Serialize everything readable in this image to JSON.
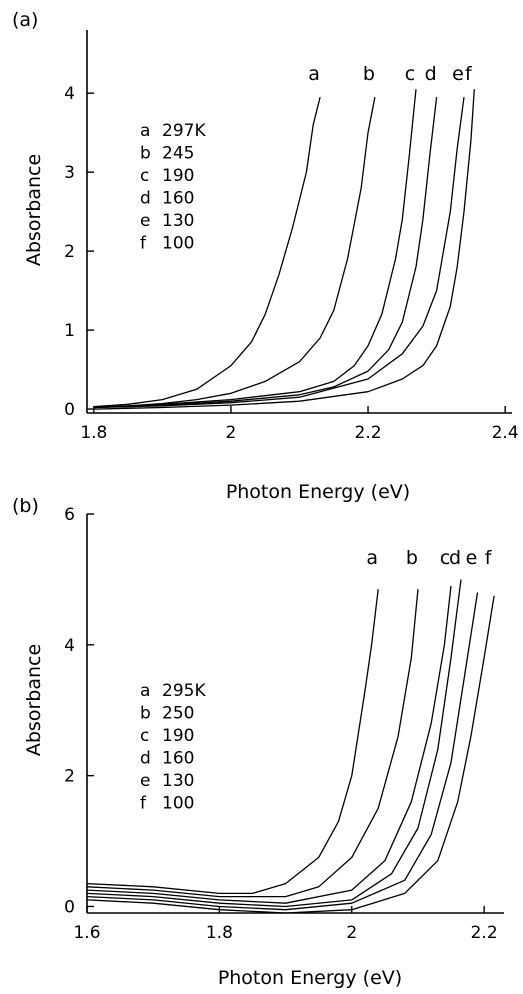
{
  "chart_data": [
    {
      "type": "line",
      "panel_label": "(a)",
      "xlabel": "Photon Energy (eV)",
      "ylabel": "Absorbance",
      "xlim": [
        1.79,
        2.41
      ],
      "ylim": [
        -0.05,
        4.8
      ],
      "xticks": [
        1.8,
        2.0,
        2.2,
        2.4
      ],
      "xtick_labels": [
        "1.8",
        "2",
        "2.2",
        "2.4"
      ],
      "yticks": [
        0,
        1,
        2,
        3,
        4
      ],
      "ytick_labels": [
        "0",
        "1",
        "2",
        "3",
        "4"
      ],
      "grid": false,
      "legend": [
        {
          "letter": "a",
          "label": "297K"
        },
        {
          "letter": "b",
          "label": "245"
        },
        {
          "letter": "c",
          "label": "190"
        },
        {
          "letter": "d",
          "label": "160"
        },
        {
          "letter": "e",
          "label": "130"
        },
        {
          "letter": "f",
          "label": "100"
        }
      ],
      "series": [
        {
          "tag": "a",
          "x": [
            1.8,
            1.85,
            1.9,
            1.95,
            2.0,
            2.03,
            2.05,
            2.07,
            2.09,
            2.11,
            2.12,
            2.13
          ],
          "y": [
            0.03,
            0.06,
            0.12,
            0.25,
            0.55,
            0.85,
            1.2,
            1.7,
            2.3,
            3.0,
            3.6,
            3.95
          ]
        },
        {
          "tag": "b",
          "x": [
            1.8,
            1.85,
            1.9,
            1.95,
            2.0,
            2.05,
            2.1,
            2.13,
            2.15,
            2.17,
            2.19,
            2.2,
            2.21
          ],
          "y": [
            0.02,
            0.04,
            0.07,
            0.12,
            0.2,
            0.35,
            0.6,
            0.9,
            1.25,
            1.9,
            2.8,
            3.5,
            3.95
          ]
        },
        {
          "tag": "c",
          "x": [
            1.8,
            1.9,
            2.0,
            2.1,
            2.15,
            2.18,
            2.2,
            2.22,
            2.24,
            2.25,
            2.26,
            2.27
          ],
          "y": [
            0.02,
            0.06,
            0.12,
            0.22,
            0.35,
            0.55,
            0.8,
            1.2,
            1.9,
            2.4,
            3.2,
            4.05
          ]
        },
        {
          "tag": "d",
          "x": [
            1.8,
            1.9,
            2.0,
            2.1,
            2.15,
            2.2,
            2.23,
            2.25,
            2.27,
            2.28,
            2.29,
            2.3
          ],
          "y": [
            0.02,
            0.05,
            0.1,
            0.18,
            0.28,
            0.48,
            0.75,
            1.1,
            1.8,
            2.4,
            3.2,
            3.95
          ]
        },
        {
          "tag": "e",
          "x": [
            1.8,
            1.9,
            2.0,
            2.1,
            2.2,
            2.25,
            2.28,
            2.3,
            2.32,
            2.33,
            2.34
          ],
          "y": [
            0.02,
            0.04,
            0.08,
            0.15,
            0.38,
            0.7,
            1.05,
            1.5,
            2.5,
            3.3,
            3.95
          ]
        },
        {
          "tag": "f",
          "x": [
            1.8,
            1.9,
            2.0,
            2.1,
            2.2,
            2.25,
            2.28,
            2.3,
            2.32,
            2.33,
            2.34,
            2.35,
            2.355
          ],
          "y": [
            0.0,
            0.02,
            0.05,
            0.1,
            0.22,
            0.38,
            0.55,
            0.8,
            1.3,
            1.8,
            2.5,
            3.4,
            4.05
          ]
        }
      ]
    },
    {
      "type": "line",
      "panel_label": "(b)",
      "xlabel": "Photon Energy (eV)",
      "ylabel": "Absorbance",
      "xlim": [
        1.6,
        2.23
      ],
      "ylim": [
        -0.1,
        6
      ],
      "xticks": [
        1.6,
        1.8,
        2.0,
        2.2
      ],
      "xtick_labels": [
        "1.6",
        "1.8",
        "2",
        "2.2"
      ],
      "yticks": [
        0,
        2,
        4,
        6
      ],
      "ytick_labels": [
        "0",
        "2",
        "4",
        "6"
      ],
      "grid": false,
      "legend": [
        {
          "letter": "a",
          "label": "295K"
        },
        {
          "letter": "b",
          "label": "250"
        },
        {
          "letter": "c",
          "label": "190"
        },
        {
          "letter": "d",
          "label": "160"
        },
        {
          "letter": "e",
          "label": "130"
        },
        {
          "letter": "f",
          "label": "100"
        }
      ],
      "series": [
        {
          "tag": "a",
          "x": [
            1.6,
            1.7,
            1.8,
            1.85,
            1.9,
            1.95,
            1.98,
            2.0,
            2.02,
            2.03,
            2.04
          ],
          "y": [
            0.35,
            0.3,
            0.2,
            0.2,
            0.35,
            0.75,
            1.3,
            2.0,
            3.3,
            4.0,
            4.85
          ]
        },
        {
          "tag": "b",
          "x": [
            1.6,
            1.7,
            1.8,
            1.9,
            1.95,
            2.0,
            2.04,
            2.07,
            2.09,
            2.1
          ],
          "y": [
            0.3,
            0.25,
            0.15,
            0.15,
            0.3,
            0.75,
            1.5,
            2.6,
            3.8,
            4.85
          ]
        },
        {
          "tag": "c",
          "x": [
            1.6,
            1.7,
            1.8,
            1.9,
            2.0,
            2.05,
            2.09,
            2.12,
            2.14,
            2.15
          ],
          "y": [
            0.25,
            0.2,
            0.1,
            0.05,
            0.25,
            0.7,
            1.6,
            2.8,
            4.0,
            4.9
          ]
        },
        {
          "tag": "d",
          "x": [
            1.6,
            1.7,
            1.8,
            1.9,
            2.0,
            2.06,
            2.1,
            2.13,
            2.15,
            2.165
          ],
          "y": [
            0.2,
            0.15,
            0.05,
            0.0,
            0.1,
            0.5,
            1.2,
            2.4,
            3.8,
            5.0
          ]
        },
        {
          "tag": "e",
          "x": [
            1.6,
            1.7,
            1.8,
            1.9,
            2.0,
            2.08,
            2.12,
            2.15,
            2.17,
            2.19
          ],
          "y": [
            0.15,
            0.1,
            0.0,
            -0.05,
            0.05,
            0.4,
            1.1,
            2.2,
            3.5,
            4.8
          ]
        },
        {
          "tag": "f",
          "x": [
            1.6,
            1.7,
            1.8,
            1.9,
            2.0,
            2.08,
            2.13,
            2.16,
            2.18,
            2.2,
            2.215
          ],
          "y": [
            0.1,
            0.05,
            -0.05,
            -0.1,
            -0.05,
            0.2,
            0.7,
            1.6,
            2.6,
            3.8,
            4.75
          ]
        }
      ]
    }
  ]
}
